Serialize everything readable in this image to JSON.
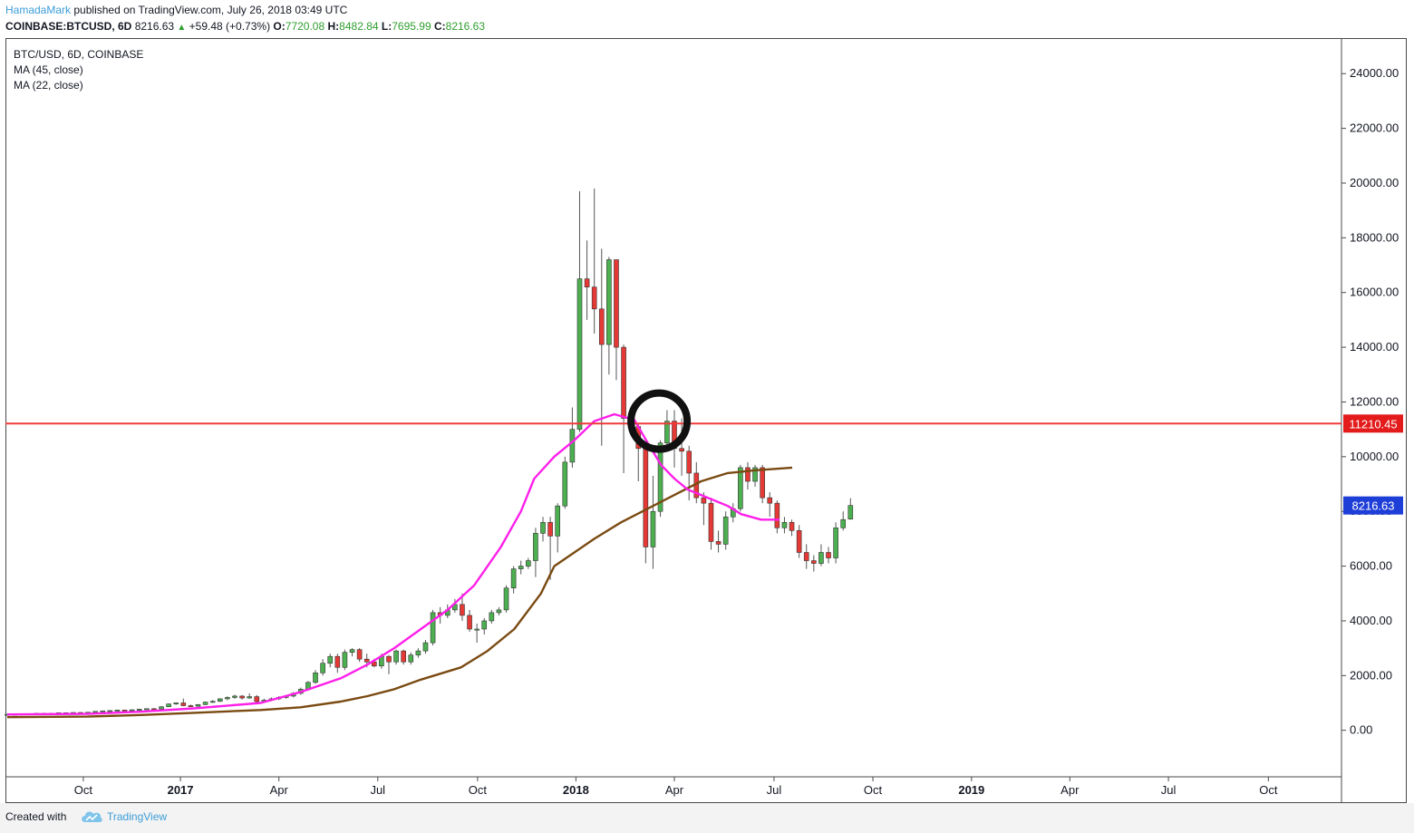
{
  "header": {
    "user": "HamadaMark",
    "published": "published on TradingView.com, July 26, 2018 03:49 UTC",
    "symbol": "COINBASE:BTCUSD, 6D",
    "last": "8216.63",
    "change": "+59.48 (+0.73%)",
    "o_label": "O:",
    "o_val": "7720.08",
    "h_label": "H:",
    "h_val": "8482.84",
    "l_label": "L:",
    "l_val": "7695.99",
    "c_label": "C:",
    "c_val": "8216.63"
  },
  "legend": {
    "line1": "BTC/USD, 6D, COINBASE",
    "line2": "MA (45, close)",
    "line3": "MA (22, close)"
  },
  "footer": {
    "created": "Created with",
    "brand": "TradingView"
  },
  "colors": {
    "up": "#4caf50",
    "down": "#e53935",
    "ma45": "#7a4a12",
    "ma22": "#ff1fe9",
    "hline": "#ef3b3b",
    "price_tag": "#1e3ed8"
  },
  "chart_data": {
    "type": "candlestick",
    "title": "BTC/USD, 6D, COINBASE",
    "ylim": [
      -1700,
      25300
    ],
    "y_ticks": [
      0,
      2000,
      4000,
      6000,
      8000,
      10000,
      12000,
      14000,
      16000,
      18000,
      20000,
      22000,
      24000
    ],
    "y_tick_labels": [
      "0.00",
      "2000.00",
      "4000.00",
      "6000.00",
      "8000.00",
      "10000.00",
      "12000.00",
      "14000.00",
      "16000.00",
      "18000.00",
      "20000.00",
      "22000.00",
      "24000.00"
    ],
    "x_ticks": [
      {
        "label": "Oct",
        "t": 0.057
      },
      {
        "label": "2017",
        "t": 0.1298
      },
      {
        "label": "Apr",
        "t": 0.2036
      },
      {
        "label": "Jul",
        "t": 0.2777
      },
      {
        "label": "Oct",
        "t": 0.3525
      },
      {
        "label": "2018",
        "t": 0.4262
      },
      {
        "label": "Apr",
        "t": 0.5
      },
      {
        "label": "Jul",
        "t": 0.5747
      },
      {
        "label": "Oct",
        "t": 0.6488
      },
      {
        "label": "2019",
        "t": 0.7227
      },
      {
        "label": "Apr",
        "t": 0.7964
      },
      {
        "label": "Jul",
        "t": 0.8703
      },
      {
        "label": "Oct",
        "t": 0.9452
      }
    ],
    "horizontal_line": {
      "value": 11210.45,
      "label": "11210.45"
    },
    "last_price": {
      "value": 8216.63,
      "label": "8216.63"
    },
    "annotation": {
      "type": "circle",
      "at_date": "2018-03-18",
      "at_value": 11300
    },
    "series": [
      {
        "name": "MA (45, close)",
        "values": [
          [
            0.0,
            480
          ],
          [
            0.06,
            500
          ],
          [
            0.1,
            560
          ],
          [
            0.14,
            640
          ],
          [
            0.19,
            740
          ],
          [
            0.22,
            840
          ],
          [
            0.25,
            1050
          ],
          [
            0.27,
            1250
          ],
          [
            0.29,
            1500
          ],
          [
            0.31,
            1850
          ],
          [
            0.34,
            2300
          ],
          [
            0.36,
            2900
          ],
          [
            0.38,
            3700
          ],
          [
            0.4,
            5000
          ],
          [
            0.41,
            6000
          ],
          [
            0.425,
            6500
          ],
          [
            0.44,
            7000
          ],
          [
            0.46,
            7600
          ],
          [
            0.48,
            8100
          ],
          [
            0.5,
            8600
          ],
          [
            0.52,
            9100
          ],
          [
            0.54,
            9400
          ],
          [
            0.56,
            9500
          ],
          [
            0.5883,
            9600
          ]
        ]
      },
      {
        "name": "MA (22, close)",
        "values": [
          [
            0.0,
            580
          ],
          [
            0.06,
            600
          ],
          [
            0.1,
            680
          ],
          [
            0.14,
            800
          ],
          [
            0.19,
            1000
          ],
          [
            0.22,
            1400
          ],
          [
            0.25,
            1900
          ],
          [
            0.27,
            2400
          ],
          [
            0.29,
            3000
          ],
          [
            0.31,
            3700
          ],
          [
            0.33,
            4400
          ],
          [
            0.35,
            5300
          ],
          [
            0.37,
            6700
          ],
          [
            0.385,
            8000
          ],
          [
            0.395,
            9200
          ],
          [
            0.41,
            10000
          ],
          [
            0.425,
            10600
          ],
          [
            0.44,
            11300
          ],
          [
            0.455,
            11550
          ],
          [
            0.47,
            11350
          ],
          [
            0.48,
            10500
          ],
          [
            0.49,
            9700
          ],
          [
            0.5,
            9200
          ],
          [
            0.51,
            8800
          ],
          [
            0.525,
            8500
          ],
          [
            0.54,
            8200
          ],
          [
            0.55,
            7900
          ],
          [
            0.565,
            7700
          ],
          [
            0.5788,
            7700
          ]
        ]
      }
    ],
    "candles": [
      [
        0.0,
        575,
        585,
        560,
        600
      ],
      [
        0.0055,
        585,
        590,
        575,
        600
      ],
      [
        0.011,
        590,
        600,
        580,
        610
      ],
      [
        0.0165,
        600,
        605,
        590,
        615
      ],
      [
        0.022,
        605,
        620,
        595,
        630
      ],
      [
        0.0275,
        620,
        610,
        600,
        630
      ],
      [
        0.033,
        610,
        620,
        600,
        630
      ],
      [
        0.0385,
        620,
        640,
        610,
        650
      ],
      [
        0.044,
        640,
        630,
        620,
        650
      ],
      [
        0.0495,
        630,
        650,
        620,
        660
      ],
      [
        0.055,
        650,
        640,
        630,
        660
      ],
      [
        0.0605,
        640,
        660,
        630,
        670
      ],
      [
        0.066,
        660,
        690,
        650,
        700
      ],
      [
        0.0715,
        690,
        710,
        680,
        720
      ],
      [
        0.077,
        710,
        720,
        700,
        740
      ],
      [
        0.0825,
        720,
        740,
        710,
        750
      ],
      [
        0.088,
        740,
        730,
        720,
        750
      ],
      [
        0.0935,
        730,
        750,
        720,
        760
      ],
      [
        0.099,
        750,
        770,
        740,
        780
      ],
      [
        0.1045,
        770,
        790,
        760,
        800
      ],
      [
        0.11,
        790,
        780,
        770,
        810
      ],
      [
        0.1155,
        780,
        860,
        770,
        880
      ],
      [
        0.121,
        860,
        960,
        850,
        980
      ],
      [
        0.1265,
        960,
        1000,
        930,
        1020
      ],
      [
        0.132,
        1000,
        900,
        880,
        1160
      ],
      [
        0.1375,
        900,
        880,
        850,
        940
      ],
      [
        0.143,
        880,
        940,
        860,
        960
      ],
      [
        0.1485,
        940,
        1030,
        920,
        1050
      ],
      [
        0.154,
        1030,
        1060,
        1000,
        1100
      ],
      [
        0.1595,
        1060,
        1150,
        1030,
        1170
      ],
      [
        0.165,
        1150,
        1200,
        1100,
        1240
      ],
      [
        0.1705,
        1200,
        1250,
        1150,
        1300
      ],
      [
        0.176,
        1250,
        1180,
        1120,
        1290
      ],
      [
        0.1815,
        1180,
        1230,
        1150,
        1350
      ],
      [
        0.187,
        1230,
        1050,
        980,
        1290
      ],
      [
        0.1925,
        1050,
        1100,
        1000,
        1150
      ],
      [
        0.198,
        1100,
        1150,
        1060,
        1200
      ],
      [
        0.2035,
        1150,
        1200,
        1100,
        1250
      ],
      [
        0.209,
        1200,
        1250,
        1150,
        1290
      ],
      [
        0.2145,
        1250,
        1350,
        1200,
        1400
      ],
      [
        0.22,
        1350,
        1500,
        1300,
        1560
      ],
      [
        0.2255,
        1500,
        1750,
        1450,
        1800
      ],
      [
        0.231,
        1750,
        2100,
        1700,
        2200
      ],
      [
        0.2365,
        2100,
        2450,
        2000,
        2600
      ],
      [
        0.242,
        2450,
        2700,
        2300,
        2800
      ],
      [
        0.2475,
        2700,
        2300,
        2100,
        2800
      ],
      [
        0.253,
        2300,
        2850,
        2200,
        2950
      ],
      [
        0.2585,
        2850,
        2950,
        2700,
        3000
      ],
      [
        0.264,
        2950,
        2600,
        2500,
        3000
      ],
      [
        0.2695,
        2600,
        2500,
        2300,
        2800
      ],
      [
        0.275,
        2500,
        2350,
        2300,
        2600
      ],
      [
        0.2805,
        2350,
        2700,
        2250,
        2800
      ],
      [
        0.286,
        2700,
        2500,
        2050,
        2750
      ],
      [
        0.2915,
        2500,
        2900,
        2400,
        2950
      ],
      [
        0.297,
        2900,
        2500,
        2400,
        2950
      ],
      [
        0.3025,
        2500,
        2750,
        2400,
        2850
      ],
      [
        0.308,
        2750,
        2900,
        2650,
        3000
      ],
      [
        0.3135,
        2900,
        3200,
        2800,
        3300
      ],
      [
        0.319,
        3200,
        4300,
        3100,
        4400
      ],
      [
        0.3245,
        4300,
        4200,
        3900,
        4500
      ],
      [
        0.33,
        4200,
        4400,
        4100,
        4600
      ],
      [
        0.3355,
        4400,
        4600,
        4300,
        4800
      ],
      [
        0.341,
        4600,
        4200,
        4000,
        5000
      ],
      [
        0.3465,
        4200,
        3700,
        3600,
        4400
      ],
      [
        0.352,
        3700,
        3700,
        3200,
        3900
      ],
      [
        0.3575,
        3700,
        4000,
        3500,
        4100
      ],
      [
        0.363,
        4000,
        4300,
        3900,
        4400
      ],
      [
        0.3685,
        4300,
        4400,
        4200,
        4500
      ],
      [
        0.374,
        4400,
        5200,
        4300,
        5300
      ],
      [
        0.3795,
        5200,
        5900,
        5000,
        6000
      ],
      [
        0.385,
        5900,
        6000,
        5700,
        6200
      ],
      [
        0.3905,
        6000,
        6200,
        5900,
        6300
      ],
      [
        0.396,
        6200,
        7200,
        5600,
        7400
      ],
      [
        0.4015,
        7200,
        7600,
        6900,
        7800
      ],
      [
        0.407,
        7600,
        7100,
        5500,
        7800
      ],
      [
        0.4125,
        7100,
        8200,
        6500,
        8300
      ],
      [
        0.418,
        8200,
        9800,
        8100,
        10000
      ],
      [
        0.4235,
        9800,
        11000,
        9600,
        11800
      ],
      [
        0.429,
        11000,
        16500,
        10900,
        19700
      ],
      [
        0.4345,
        16500,
        16200,
        15000,
        17900
      ],
      [
        0.44,
        16200,
        15400,
        14500,
        19800
      ],
      [
        0.4455,
        15400,
        14100,
        10400,
        17600
      ],
      [
        0.451,
        14100,
        17200,
        13000,
        17300
      ],
      [
        0.4565,
        17200,
        14000,
        12800,
        17200
      ],
      [
        0.462,
        14000,
        11400,
        9400,
        14100
      ],
      [
        0.4675,
        11400,
        11100,
        10900,
        11600
      ],
      [
        0.473,
        11100,
        10300,
        9100,
        11200
      ],
      [
        0.4785,
        10300,
        6700,
        6100,
        10400
      ],
      [
        0.484,
        6700,
        8000,
        5900,
        9300
      ],
      [
        0.4895,
        8000,
        10500,
        7800,
        10600
      ],
      [
        0.4945,
        10500,
        11300,
        10300,
        11700
      ],
      [
        0.5,
        11300,
        10300,
        9600,
        11700
      ],
      [
        0.5055,
        10300,
        10200,
        9300,
        11400
      ],
      [
        0.511,
        10200,
        9400,
        8400,
        10400
      ],
      [
        0.5165,
        9400,
        8500,
        8300,
        9800
      ],
      [
        0.522,
        8500,
        8300,
        7500,
        8700
      ],
      [
        0.5275,
        8300,
        6900,
        6600,
        8500
      ],
      [
        0.533,
        6900,
        6800,
        6500,
        7300
      ],
      [
        0.5385,
        6800,
        7800,
        6600,
        8000
      ],
      [
        0.544,
        7800,
        8100,
        7600,
        8300
      ],
      [
        0.5495,
        8100,
        9600,
        8000,
        9700
      ],
      [
        0.555,
        9600,
        9100,
        8800,
        9800
      ],
      [
        0.5605,
        9100,
        9600,
        8900,
        9700
      ],
      [
        0.566,
        9600,
        8500,
        8300,
        9700
      ],
      [
        0.5715,
        8500,
        8300,
        7800,
        8700
      ],
      [
        0.577,
        8300,
        7400,
        7200,
        8400
      ],
      [
        0.5825,
        7400,
        7600,
        7200,
        7800
      ],
      [
        0.588,
        7600,
        7300,
        7100,
        7700
      ],
      [
        0.5935,
        7300,
        6500,
        6300,
        7500
      ],
      [
        0.599,
        6500,
        6200,
        5900,
        6800
      ],
      [
        0.6045,
        6200,
        6100,
        5800,
        6400
      ],
      [
        0.61,
        6100,
        6500,
        6000,
        6800
      ],
      [
        0.6155,
        6500,
        6300,
        6100,
        6700
      ],
      [
        0.621,
        6300,
        7400,
        6100,
        7600
      ],
      [
        0.6265,
        7400,
        7700,
        7300,
        8000
      ],
      [
        0.632,
        7720.08,
        8216.63,
        7695.99,
        8482.84
      ]
    ]
  }
}
